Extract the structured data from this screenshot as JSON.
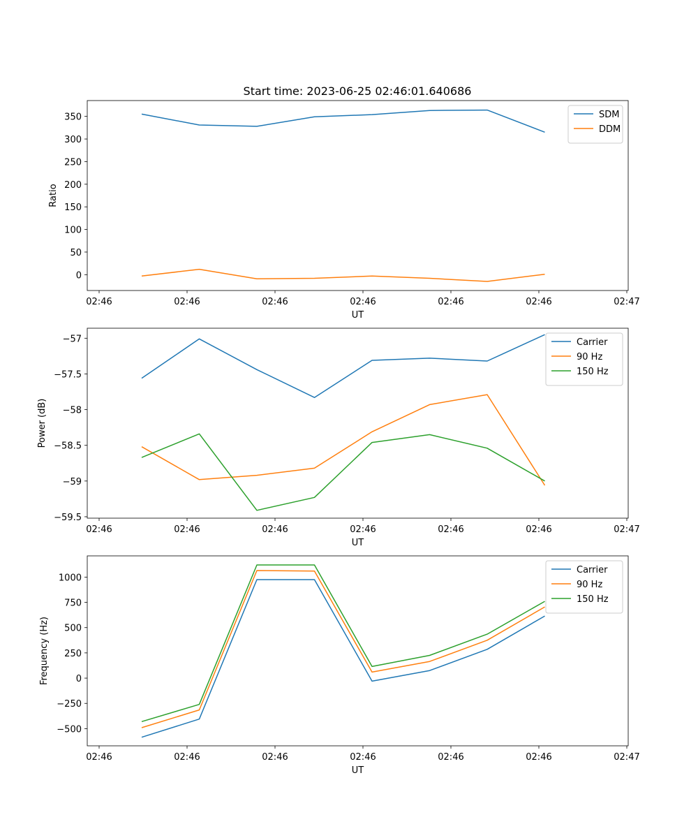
{
  "title": "Start time: 2023-06-25 02:46:01.640686",
  "colors": {
    "blue": "#1f77b4",
    "orange": "#ff7f0e",
    "green": "#2ca02c"
  },
  "chart_data": [
    {
      "type": "line",
      "ylabel": "Ratio",
      "xlabel": "UT",
      "xticks": [
        "02:46",
        "02:46",
        "02:46",
        "02:46",
        "02:46",
        "02:46",
        "02:47"
      ],
      "yticks": [
        0,
        50,
        100,
        150,
        200,
        250,
        300,
        350
      ],
      "ylim": [
        -35,
        385
      ],
      "legend": "top-right",
      "series": [
        {
          "name": "SDM",
          "color": "#1f77b4",
          "values": [
            355,
            331,
            328,
            349,
            354,
            363,
            364,
            315
          ]
        },
        {
          "name": "DDM",
          "color": "#ff7f0e",
          "values": [
            -3,
            12,
            -9,
            -8,
            -3,
            -8,
            -15,
            1
          ]
        }
      ]
    },
    {
      "type": "line",
      "ylabel": "Power (dB)",
      "xlabel": "UT",
      "xticks": [
        "02:46",
        "02:46",
        "02:46",
        "02:46",
        "02:46",
        "02:46",
        "02:47"
      ],
      "yticks": [
        -57.0,
        -57.5,
        -58.0,
        -58.5,
        -59.0,
        -59.5
      ],
      "ylim": [
        -59.52,
        -56.86
      ],
      "legend": "top-right",
      "series": [
        {
          "name": "Carrier",
          "color": "#1f77b4",
          "values": [
            -57.56,
            -57.01,
            -57.44,
            -57.83,
            -57.31,
            -57.28,
            -57.32,
            -56.95
          ]
        },
        {
          "name": "90 Hz",
          "color": "#ff7f0e",
          "values": [
            -58.52,
            -58.98,
            -58.92,
            -58.82,
            -58.31,
            -57.93,
            -57.79,
            -59.06
          ]
        },
        {
          "name": "150 Hz",
          "color": "#2ca02c",
          "values": [
            -58.67,
            -58.34,
            -59.41,
            -59.23,
            -58.46,
            -58.35,
            -58.54,
            -59.0
          ]
        }
      ]
    },
    {
      "type": "line",
      "ylabel": "Frequency (Hz)",
      "xlabel": "UT",
      "xticks": [
        "02:46",
        "02:46",
        "02:46",
        "02:46",
        "02:46",
        "02:46",
        "02:47"
      ],
      "yticks": [
        -500,
        -250,
        0,
        250,
        500,
        750,
        1000
      ],
      "ylim": [
        -670,
        1210
      ],
      "legend": "top-right",
      "series": [
        {
          "name": "Carrier",
          "color": "#1f77b4",
          "values": [
            -585,
            -405,
            975,
            975,
            -30,
            75,
            285,
            615
          ]
        },
        {
          "name": "90 Hz",
          "color": "#ff7f0e",
          "values": [
            -490,
            -315,
            1065,
            1060,
            60,
            165,
            375,
            705
          ]
        },
        {
          "name": "150 Hz",
          "color": "#2ca02c",
          "values": [
            -430,
            -260,
            1120,
            1120,
            115,
            225,
            435,
            760
          ]
        }
      ]
    }
  ]
}
